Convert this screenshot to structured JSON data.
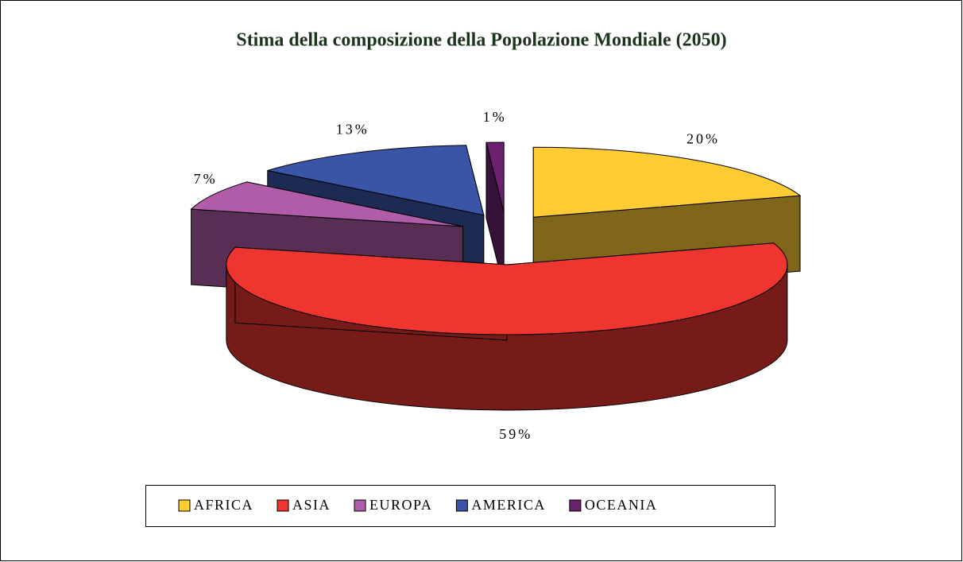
{
  "chart_data": {
    "type": "pie3d",
    "title": "Stima della composizione della Popolazione Mondiale (2050)",
    "categories": [
      "AFRICA",
      "ASIA",
      "EUROPA",
      "AMERICA",
      "OCEANIA"
    ],
    "values": [
      20,
      59,
      7,
      13,
      1
    ],
    "value_labels": [
      "20%",
      "59%",
      "7%",
      "13%",
      "1%"
    ],
    "colors": [
      "#ffcc33",
      "#ee3530",
      "#b05ca8",
      "#3a55a8",
      "#6b2170"
    ],
    "legend": "bottom"
  }
}
